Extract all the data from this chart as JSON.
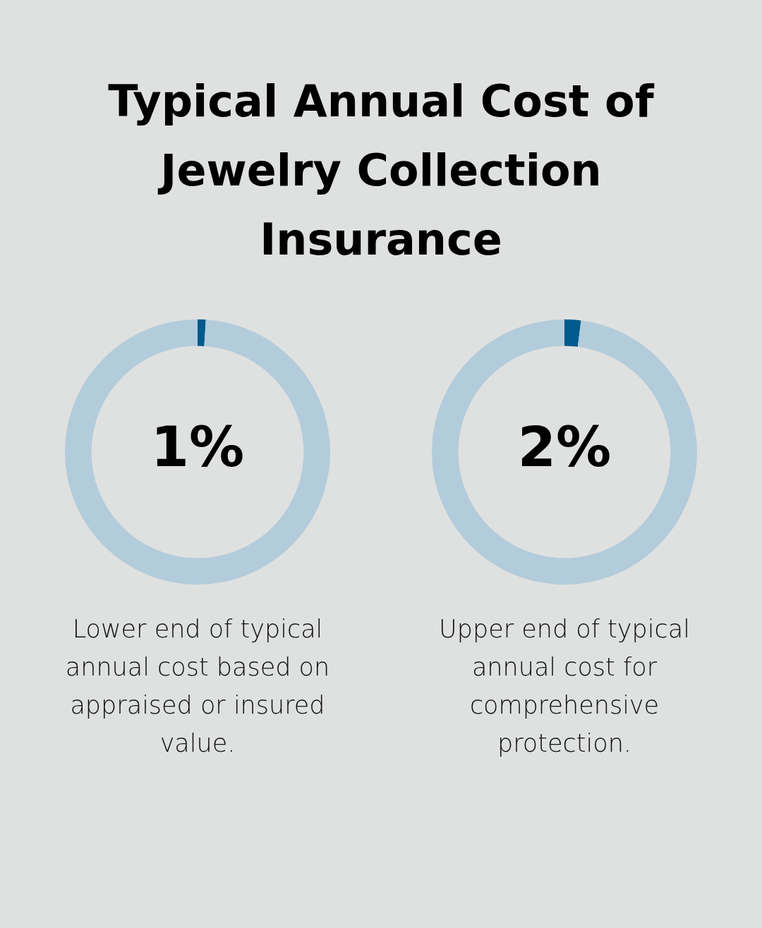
{
  "chart_data": [
    {
      "type": "donut",
      "title": "Typical Annual Cost of Jewelry Collection Insurance",
      "categories": [
        null,
        null
      ],
      "values": [
        1,
        99
      ],
      "colors": [
        "#005a8c",
        "#b3ccdc"
      ],
      "value_labels": [
        "1%",
        null
      ],
      "annotations": [
        "Lower end of typical annual cost based on appraised or insured value."
      ]
    },
    {
      "type": "donut",
      "categories": [
        null,
        null
      ],
      "values": [
        2,
        98
      ],
      "colors": [
        "#005a8c",
        "#b3ccdc"
      ],
      "value_labels": [
        "2%",
        null
      ],
      "annotations": [
        "Upper end of typical annual cost for comprehensive protection."
      ]
    }
  ]
}
